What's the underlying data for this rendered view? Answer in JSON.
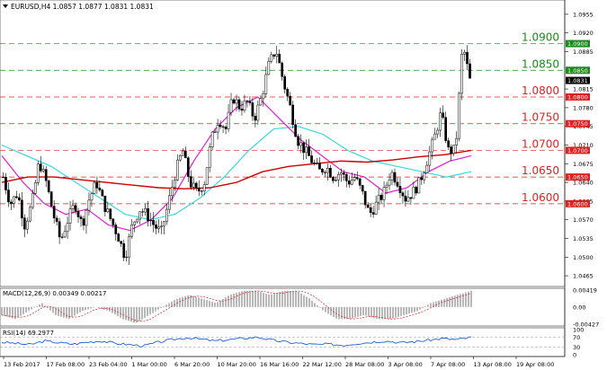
{
  "header": {
    "symbol_line": "EURUSD,H4  1.0857 1.0877 1.0831 1.0831"
  },
  "chart_data": {
    "type": "candlestick",
    "symbol": "EURUSD",
    "timeframe": "H4",
    "ohlc_current": {
      "open": 1.0857,
      "high": 1.0877,
      "low": 1.0831,
      "close": 1.0831
    },
    "price_axis": {
      "ticks": [
        "1.0955",
        "1.0920",
        "1.0885",
        "1.0815",
        "1.0780",
        "1.0745",
        "1.0710",
        "1.0675",
        "1.0640",
        "1.0605",
        "1.0570",
        "1.0535",
        "1.0500",
        "1.0465"
      ],
      "range": [
        1.045,
        1.0975
      ]
    },
    "levels": [
      {
        "label": "1.0900",
        "value": 1.09,
        "tag": "1.0900",
        "color": "#1a8a1a",
        "style": "green"
      },
      {
        "label": "1.0850",
        "value": 1.085,
        "tag": "1.0850",
        "color": "#1a8a1a",
        "style": "green"
      },
      {
        "label": "1.0800",
        "value": 1.08,
        "tag": "1.0800",
        "color": "#e02020",
        "style": "red"
      },
      {
        "label": "1.0750",
        "value": 1.075,
        "tag": "1.0750",
        "color": "#e02020",
        "style": "red"
      },
      {
        "label": "1.0700",
        "value": 1.07,
        "tag": "1.0700",
        "color": "#e02020",
        "style": "red"
      },
      {
        "label": "1.0650",
        "value": 1.065,
        "tag": "1.0650",
        "color": "#e02020",
        "style": "red"
      },
      {
        "label": "1.0600",
        "value": 1.06,
        "tag": "1.0600",
        "color": "#e02020",
        "style": "red"
      }
    ],
    "current_price_tag": "1.0831",
    "time_axis": [
      "13 Feb 2017",
      "17 Feb 08:00",
      "23 Feb 04:00",
      "1 Mar 00:00",
      "6 Mar 20:00",
      "10 Mar 20:00",
      "16 Mar 16:00",
      "22 Mar 12:00",
      "28 Mar 08:00",
      "3 Apr 08:00",
      "7 Apr 08:00",
      "13 Apr 08:00",
      "19 Apr 08:00"
    ],
    "price_path": [
      1.065,
      1.06,
      1.062,
      1.056,
      1.06,
      1.068,
      1.064,
      1.058,
      1.053,
      1.057,
      1.06,
      1.056,
      1.061,
      1.064,
      1.06,
      1.057,
      1.054,
      1.05,
      1.056,
      1.059,
      1.058,
      1.056,
      1.0545,
      1.06,
      1.066,
      1.07,
      1.064,
      1.062,
      1.064,
      1.072,
      1.076,
      1.074,
      1.08,
      1.078,
      1.079,
      1.076,
      1.08,
      1.086,
      1.089,
      1.083,
      1.078,
      1.072,
      1.07,
      1.068,
      1.066,
      1.067,
      1.065,
      1.066,
      1.064,
      1.065,
      1.062,
      1.058,
      1.06,
      1.062,
      1.066,
      1.064,
      1.061,
      1.062,
      1.064,
      1.068,
      1.072,
      1.077,
      1.07,
      1.07,
      1.09,
      1.0831
    ],
    "ma_red": [
      1.064,
      1.065,
      1.065,
      1.0645,
      1.064,
      1.0635,
      1.063,
      1.0628,
      1.063,
      1.064,
      1.066,
      1.067,
      1.0675,
      1.068,
      1.0678,
      1.0682,
      1.0688,
      1.0692,
      1.07
    ],
    "ma_magenta": [
      1.069,
      1.064,
      1.06,
      1.058,
      1.059,
      1.056,
      1.055,
      1.057,
      1.061,
      1.068,
      1.074,
      1.078,
      1.08,
      1.076,
      1.072,
      1.069,
      1.066,
      1.065,
      1.062,
      1.063,
      1.066,
      1.068,
      1.069
    ],
    "ma_cyan": [
      1.071,
      1.069,
      1.067,
      1.064,
      1.061,
      1.058,
      1.057,
      1.058,
      1.061,
      1.065,
      1.07,
      1.074,
      1.0745,
      1.073,
      1.07,
      1.068,
      1.067,
      1.066,
      1.065,
      1.066
    ],
    "macd": {
      "label": "MACD(12,26,9) 0.00349 0.00217",
      "ticks": [
        "0.00419",
        "0.00",
        "-0.00427"
      ],
      "histogram": [
        -0.002,
        -0.003,
        -0.001,
        0.001,
        -0.002,
        -0.003,
        -0.001,
        0.0,
        -0.001,
        -0.003,
        -0.004,
        -0.002,
        0.0,
        0.002,
        0.003,
        0.002,
        0.001,
        0.003,
        0.004,
        0.004,
        0.003,
        0.004,
        0.004,
        0.002,
        -0.001,
        -0.003,
        -0.003,
        -0.002,
        -0.003,
        -0.003,
        -0.002,
        -0.001,
        0.001,
        0.002,
        0.003,
        0.004
      ]
    },
    "rsi": {
      "label": "RSI(14) 69.2977",
      "ticks": [
        "100",
        "70",
        "30",
        "0"
      ],
      "values": [
        50,
        45,
        40,
        55,
        48,
        42,
        50,
        55,
        45,
        40,
        35,
        50,
        60,
        68,
        62,
        55,
        60,
        65,
        70,
        58,
        50,
        45,
        40,
        42,
        38,
        45,
        50,
        55,
        48,
        52,
        58,
        65,
        60,
        69
      ]
    }
  }
}
